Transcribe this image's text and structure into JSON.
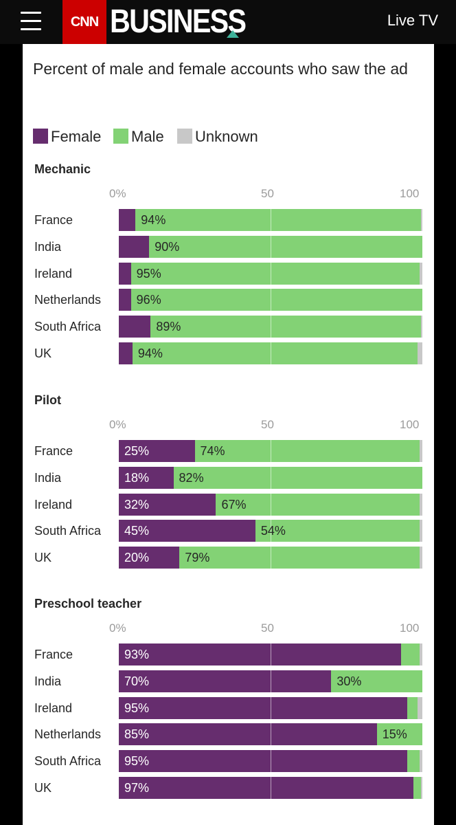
{
  "header": {
    "logo_box": "CNN",
    "logo_word": "BUSINESS",
    "live_tv": "Live TV"
  },
  "colors": {
    "female": "#662d6e",
    "male": "#83d275",
    "unknown": "#c8c8c8"
  },
  "chart_data": {
    "type": "bar",
    "stacked": true,
    "orientation": "horizontal",
    "title": "Percent of male and female accounts who saw the ad",
    "legend": [
      "Female",
      "Male",
      "Unknown"
    ],
    "xlim": [
      0,
      100
    ],
    "ticks": [
      "0%",
      "50",
      "100"
    ],
    "panels": [
      {
        "title": "Mechanic",
        "categories": [
          "France",
          "India",
          "Ireland",
          "Netherlands",
          "South Africa",
          "UK"
        ],
        "series": [
          {
            "name": "Female",
            "values": [
              5.5,
              10,
              4,
              4,
              10.5,
              4.5
            ]
          },
          {
            "name": "Male",
            "values": [
              94,
              90,
              95,
              96,
              89,
              94
            ]
          },
          {
            "name": "Unknown",
            "values": [
              0.5,
              0,
              1,
              0,
              0.5,
              1.5
            ]
          }
        ],
        "labels": [
          [
            "",
            "94%"
          ],
          [
            "",
            "90%"
          ],
          [
            "",
            "95%"
          ],
          [
            "",
            "96%"
          ],
          [
            "",
            "89%"
          ],
          [
            "",
            "94%"
          ]
        ]
      },
      {
        "title": "Pilot",
        "categories": [
          "France",
          "India",
          "Ireland",
          "South Africa",
          "UK"
        ],
        "series": [
          {
            "name": "Female",
            "values": [
              25,
              18,
              32,
              45,
              20
            ]
          },
          {
            "name": "Male",
            "values": [
              74,
              82,
              67,
              54,
              79
            ]
          },
          {
            "name": "Unknown",
            "values": [
              1,
              0,
              1,
              1,
              1
            ]
          }
        ],
        "labels": [
          [
            "25%",
            "74%"
          ],
          [
            "18%",
            "82%"
          ],
          [
            "32%",
            "67%"
          ],
          [
            "45%",
            "54%"
          ],
          [
            "20%",
            "79%"
          ]
        ]
      },
      {
        "title": "Preschool teacher",
        "categories": [
          "France",
          "India",
          "Ireland",
          "Netherlands",
          "South Africa",
          "UK"
        ],
        "series": [
          {
            "name": "Female",
            "values": [
              93,
              70,
              95,
              85,
              95,
              97
            ]
          },
          {
            "name": "Male",
            "values": [
              6,
              30,
              3.5,
              15,
              4,
              2.5
            ]
          },
          {
            "name": "Unknown",
            "values": [
              1,
              0,
              1.5,
              0,
              1,
              0.5
            ]
          }
        ],
        "labels": [
          [
            "93%",
            ""
          ],
          [
            "70%",
            "30%"
          ],
          [
            "95%",
            ""
          ],
          [
            "85%",
            "15%"
          ],
          [
            "95%",
            ""
          ],
          [
            "97%",
            ""
          ]
        ]
      }
    ]
  }
}
